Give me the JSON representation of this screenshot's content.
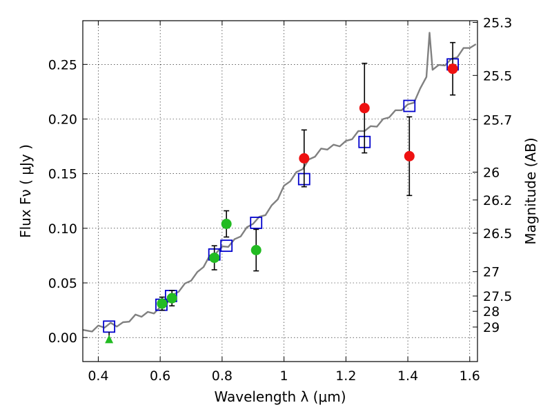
{
  "chart_data": {
    "type": "scatter",
    "title": "",
    "xlabel": "Wavelength  λ (μm)",
    "ylabel": "Flux  Fν  ( μJy )",
    "ylabel_right": "Magnitude (AB)",
    "xlim": [
      0.35,
      1.625
    ],
    "ylim": [
      -0.022,
      0.29
    ],
    "grid": true,
    "x_ticks": [
      0.4,
      0.6,
      0.8,
      1.0,
      1.2,
      1.4,
      1.6
    ],
    "x_tick_labels": [
      "0.4",
      "0.6",
      "0.8",
      "1",
      "1.2",
      "1.4",
      "1.6"
    ],
    "y_ticks": [
      0.0,
      0.05,
      0.1,
      0.15,
      0.2,
      0.25
    ],
    "y_tick_labels": [
      "0.00",
      "0.05",
      "0.10",
      "0.15",
      "0.20",
      "0.25"
    ],
    "right_ticks": [
      {
        "mag": "25.3",
        "flux": 0.2884
      },
      {
        "mag": "25.5",
        "flux": 0.2399
      },
      {
        "mag": "25.7",
        "flux": 0.1995
      },
      {
        "mag": "26",
        "flux": 0.1514
      },
      {
        "mag": "26.2",
        "flux": 0.1259
      },
      {
        "mag": "26.5",
        "flux": 0.0955
      },
      {
        "mag": "27",
        "flux": 0.0603
      },
      {
        "mag": "27.5",
        "flux": 0.038
      },
      {
        "mag": "28",
        "flux": 0.024
      },
      {
        "mag": "29",
        "flux": 0.0096
      }
    ],
    "colors": {
      "model": "#808080",
      "model_points": "#0000cc",
      "observed_optical": "#22bb22",
      "observed_ir": "#ee1111",
      "errorbar": "#000000"
    },
    "model_spectrum": {
      "x": [
        0.35,
        0.38,
        0.4,
        0.42,
        0.44,
        0.46,
        0.48,
        0.5,
        0.52,
        0.54,
        0.56,
        0.58,
        0.6,
        0.62,
        0.64,
        0.66,
        0.68,
        0.7,
        0.72,
        0.74,
        0.76,
        0.78,
        0.8,
        0.82,
        0.84,
        0.86,
        0.88,
        0.9,
        0.92,
        0.94,
        0.96,
        0.98,
        1.0,
        1.02,
        1.04,
        1.06,
        1.08,
        1.1,
        1.12,
        1.14,
        1.16,
        1.18,
        1.2,
        1.22,
        1.24,
        1.26,
        1.28,
        1.3,
        1.32,
        1.34,
        1.36,
        1.38,
        1.4,
        1.42,
        1.44,
        1.46,
        1.47,
        1.48,
        1.5,
        1.52,
        1.54,
        1.56,
        1.58,
        1.6,
        1.62
      ],
      "y": [
        0.007,
        0.007,
        0.008,
        0.009,
        0.012,
        0.013,
        0.014,
        0.016,
        0.018,
        0.019,
        0.022,
        0.025,
        0.028,
        0.032,
        0.036,
        0.042,
        0.048,
        0.055,
        0.06,
        0.066,
        0.072,
        0.077,
        0.082,
        0.086,
        0.09,
        0.094,
        0.098,
        0.104,
        0.109,
        0.115,
        0.121,
        0.128,
        0.136,
        0.143,
        0.15,
        0.157,
        0.163,
        0.167,
        0.17,
        0.172,
        0.175,
        0.178,
        0.18,
        0.183,
        0.186,
        0.189,
        0.192,
        0.196,
        0.2,
        0.203,
        0.205,
        0.208,
        0.212,
        0.218,
        0.228,
        0.24,
        0.276,
        0.245,
        0.248,
        0.252,
        0.255,
        0.258,
        0.262,
        0.265,
        0.267
      ]
    },
    "model_points": {
      "x": [
        0.435,
        0.604,
        0.635,
        0.775,
        0.814,
        0.91,
        1.065,
        1.26,
        1.405,
        1.545
      ],
      "y": [
        0.01,
        0.03,
        0.038,
        0.076,
        0.084,
        0.105,
        0.145,
        0.179,
        0.212,
        0.25
      ]
    },
    "observed_optical": {
      "x": [
        0.435,
        0.606,
        0.638,
        0.775,
        0.814,
        0.91
      ],
      "y": [
        -0.002,
        0.031,
        0.036,
        0.073,
        0.104,
        0.08
      ],
      "err": [
        0,
        0.006,
        0.007,
        0.011,
        0.012,
        0.019
      ],
      "upper_limit_x": 0.435
    },
    "observed_ir": {
      "x": [
        1.065,
        1.26,
        1.405,
        1.545
      ],
      "y": [
        0.164,
        0.21,
        0.166,
        0.246
      ],
      "err": [
        0.026,
        0.041,
        0.036,
        0.024
      ]
    }
  }
}
